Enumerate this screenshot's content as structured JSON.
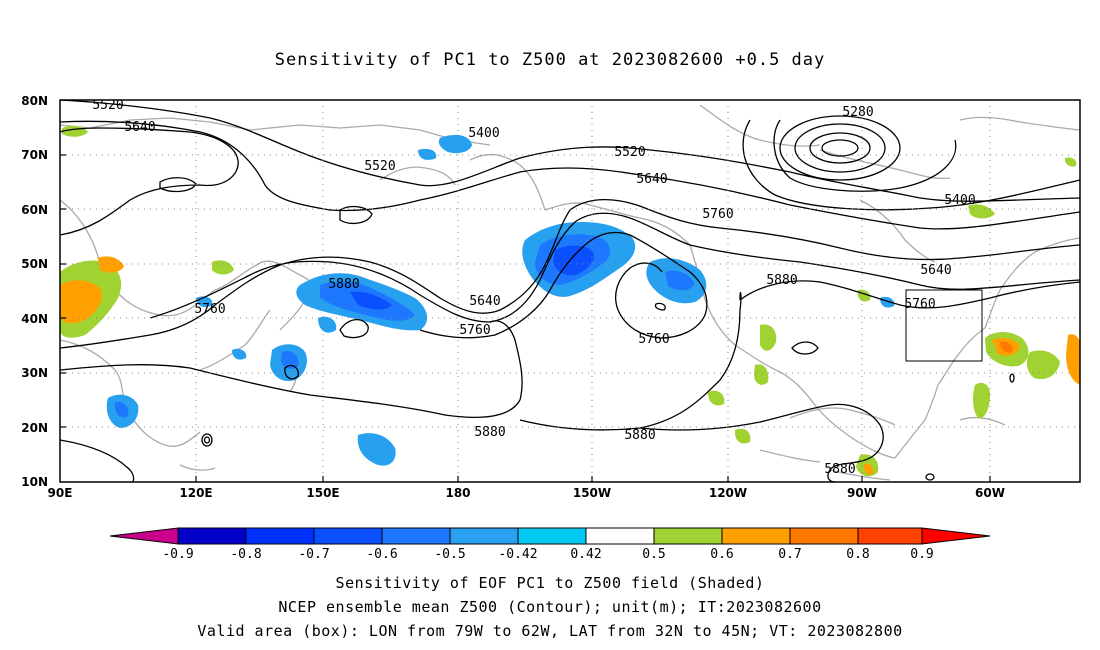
{
  "title": "Sensitivity of PC1 to Z500 at 2023082600 +0.5 day",
  "map": {
    "lat_labels": [
      "80N",
      "70N",
      "60N",
      "50N",
      "40N",
      "30N",
      "20N",
      "10N"
    ],
    "lon_labels": [
      "90E",
      "120E",
      "150E",
      "180",
      "150W",
      "120W",
      "90W",
      "60W"
    ],
    "contour_labels": [
      {
        "text": "5520"
      },
      {
        "text": "5640"
      },
      {
        "text": "5520"
      },
      {
        "text": "5400"
      },
      {
        "text": "5520"
      },
      {
        "text": "5640"
      },
      {
        "text": "5760"
      },
      {
        "text": "5280"
      },
      {
        "text": "5400"
      },
      {
        "text": "5640"
      },
      {
        "text": "5880"
      },
      {
        "text": "5760"
      },
      {
        "text": "5640"
      },
      {
        "text": "5760"
      },
      {
        "text": "5760"
      },
      {
        "text": "5880"
      },
      {
        "text": "5760"
      },
      {
        "text": "5880"
      },
      {
        "text": "5880"
      },
      {
        "text": "5880"
      }
    ],
    "valid_box": {
      "lon_from": "79W",
      "lon_to": "62W",
      "lat_from": "32N",
      "lat_to": "45N"
    }
  },
  "colorbar": {
    "colors": [
      "#c8008c",
      "#0000c8",
      "#0032ff",
      "#0a50ff",
      "#1e78ff",
      "#28a0f0",
      "#00c8f0",
      "#ffffff",
      "#a0d232",
      "#ffa000",
      "#ff7800",
      "#ff4100",
      "#ff0000",
      "#ff9bcd"
    ],
    "labels": [
      "-0.9",
      "-0.8",
      "-0.7",
      "-0.6",
      "-0.5",
      "-0.42",
      "0.42",
      "0.5",
      "0.6",
      "0.7",
      "0.8",
      "0.9"
    ]
  },
  "captions": [
    "Sensitivity of EOF PC1 to Z500 field (Shaded)",
    "NCEP ensemble mean Z500 (Contour); unit(m); IT:2023082600",
    "Valid area (box): LON from 79W to 62W, LAT from 32N to 45N; VT: 2023082800"
  ]
}
